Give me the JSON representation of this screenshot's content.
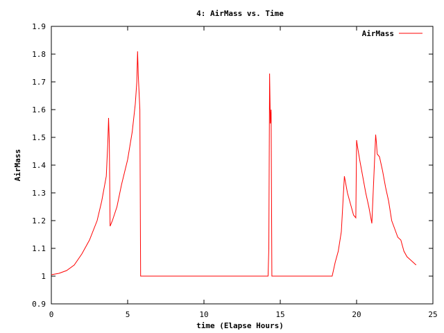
{
  "chart_data": {
    "type": "line",
    "title": "4: AirMass vs. Time",
    "xlabel": "time (Elapse Hours)",
    "ylabel": "AirMass",
    "xlim": [
      0,
      25
    ],
    "ylim": [
      0.9,
      1.9
    ],
    "xticks": [
      "0",
      "5",
      "10",
      "15",
      "20",
      "25"
    ],
    "yticks": [
      "0.9",
      "1",
      "1.1",
      "1.2",
      "1.3",
      "1.4",
      "1.5",
      "1.6",
      "1.7",
      "1.8",
      "1.9"
    ],
    "grid": false,
    "legend_position": "top-right",
    "series": [
      {
        "name": "AirMass",
        "color": "#ff0000",
        "x": [
          0,
          0.5,
          1.0,
          1.5,
          2.0,
          2.5,
          3.0,
          3.3,
          3.6,
          3.7,
          3.75,
          3.8,
          3.85,
          4.0,
          4.3,
          4.6,
          5.0,
          5.3,
          5.5,
          5.6,
          5.65,
          5.7,
          5.8,
          5.85,
          6.0,
          10.0,
          14.2,
          14.25,
          14.3,
          14.35,
          14.4,
          14.45,
          14.5,
          18.0,
          18.4,
          18.6,
          18.8,
          19.0,
          19.2,
          19.4,
          19.6,
          19.8,
          19.95,
          20.0,
          20.05,
          20.2,
          20.4,
          20.6,
          20.8,
          21.0,
          21.25,
          21.3,
          21.35,
          21.5,
          21.7,
          21.9,
          22.1,
          22.3,
          22.5,
          22.7,
          22.9,
          23.1,
          23.3,
          23.5,
          23.7,
          23.9
        ],
        "y": [
          1.005,
          1.01,
          1.02,
          1.04,
          1.08,
          1.13,
          1.2,
          1.27,
          1.36,
          1.48,
          1.57,
          1.48,
          1.18,
          1.2,
          1.25,
          1.33,
          1.42,
          1.52,
          1.62,
          1.7,
          1.81,
          1.72,
          1.6,
          1.0,
          1.0,
          1.0,
          1.0,
          1.1,
          1.73,
          1.55,
          1.6,
          1.0,
          1.0,
          1.0,
          1.0,
          1.05,
          1.09,
          1.16,
          1.36,
          1.3,
          1.26,
          1.22,
          1.21,
          1.49,
          1.47,
          1.42,
          1.36,
          1.3,
          1.25,
          1.19,
          1.51,
          1.48,
          1.44,
          1.43,
          1.38,
          1.32,
          1.27,
          1.2,
          1.17,
          1.14,
          1.13,
          1.09,
          1.07,
          1.06,
          1.05,
          1.04
        ]
      }
    ]
  }
}
